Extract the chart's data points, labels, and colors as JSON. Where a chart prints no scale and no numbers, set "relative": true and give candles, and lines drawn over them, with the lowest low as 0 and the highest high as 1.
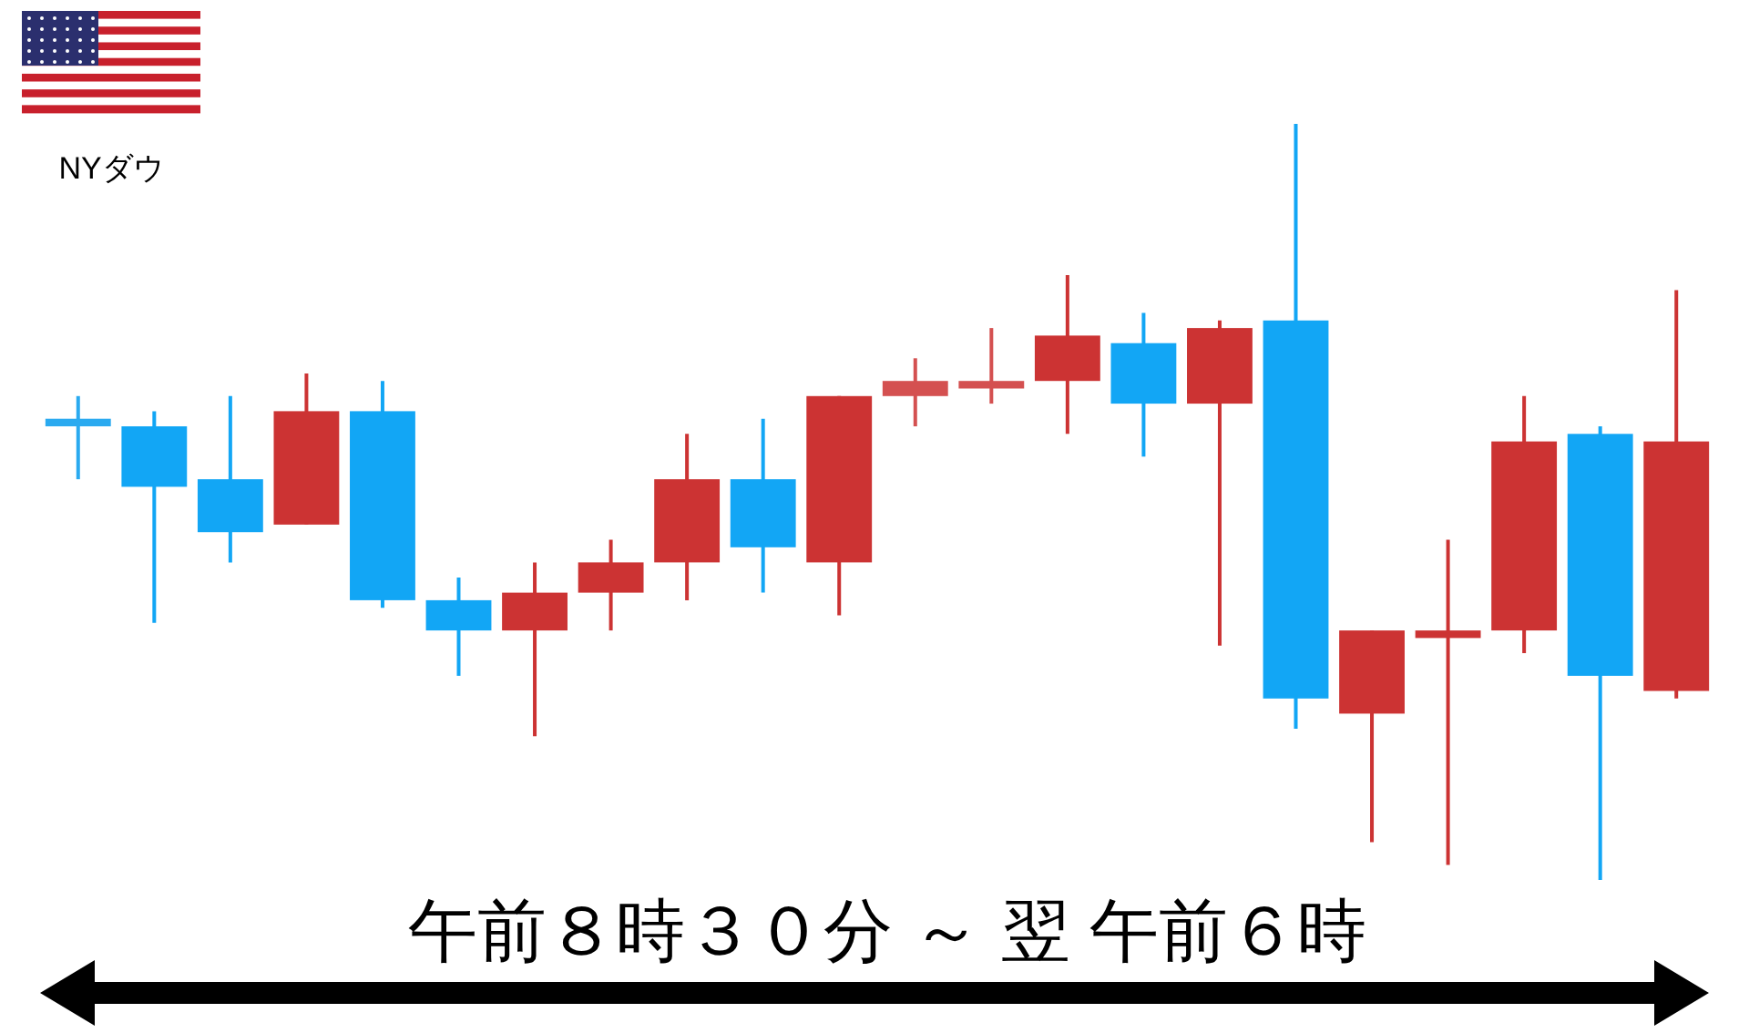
{
  "chart_data": {
    "type": "candlestick",
    "title": "NYダウ",
    "xlabel": "午前８時３０分 ～ 翌 午前６時",
    "relative": true,
    "categories": [
      null,
      null,
      null,
      null,
      null,
      null,
      null,
      null,
      null,
      null,
      null,
      null,
      null,
      null,
      null,
      null,
      null,
      null,
      null,
      null,
      null,
      null
    ],
    "ohlc": [
      [
        0.61,
        0.64,
        0.53,
        0.6
      ],
      [
        0.6,
        0.62,
        0.34,
        0.52
      ],
      [
        0.53,
        0.64,
        0.42,
        0.46
      ],
      [
        0.47,
        0.67,
        0.47,
        0.62
      ],
      [
        0.62,
        0.66,
        0.36,
        0.37
      ],
      [
        0.37,
        0.4,
        0.27,
        0.33
      ],
      [
        0.33,
        0.42,
        0.19,
        0.38
      ],
      [
        0.38,
        0.45,
        0.33,
        0.42
      ],
      [
        0.42,
        0.59,
        0.37,
        0.53
      ],
      [
        0.53,
        0.61,
        0.38,
        0.44
      ],
      [
        0.42,
        0.64,
        0.35,
        0.64
      ],
      [
        0.64,
        0.69,
        0.6,
        0.66
      ],
      [
        0.65,
        0.73,
        0.63,
        0.66
      ],
      [
        0.66,
        0.8,
        0.59,
        0.72
      ],
      [
        0.71,
        0.75,
        0.56,
        0.63
      ],
      [
        0.63,
        0.74,
        0.31,
        0.73
      ],
      [
        0.74,
        1,
        0.2,
        0.24
      ],
      [
        0.22,
        0.33,
        0.05,
        0.33
      ],
      [
        0.32,
        0.45,
        0.02,
        0.33
      ],
      [
        0.33,
        0.64,
        0.3,
        0.58
      ],
      [
        0.59,
        0.6,
        0,
        0.27
      ],
      [
        0.25,
        0.78,
        0.24,
        0.58
      ]
    ],
    "colors": [
      "#2aaaf0",
      "#12a6f5",
      "#12a6f5",
      "#cc3333",
      "#12a6f5",
      "#12a6f5",
      "#cc3333",
      "#cc3333",
      "#cc3333",
      "#12a6f5",
      "#cc3333",
      "#d45050",
      "#d45050",
      "#cc3333",
      "#12a6f5",
      "#cc3333",
      "#12a6f5",
      "#cc3333",
      "#cc3333",
      "#cc3333",
      "#12a6f5",
      "#cc3333"
    ]
  }
}
